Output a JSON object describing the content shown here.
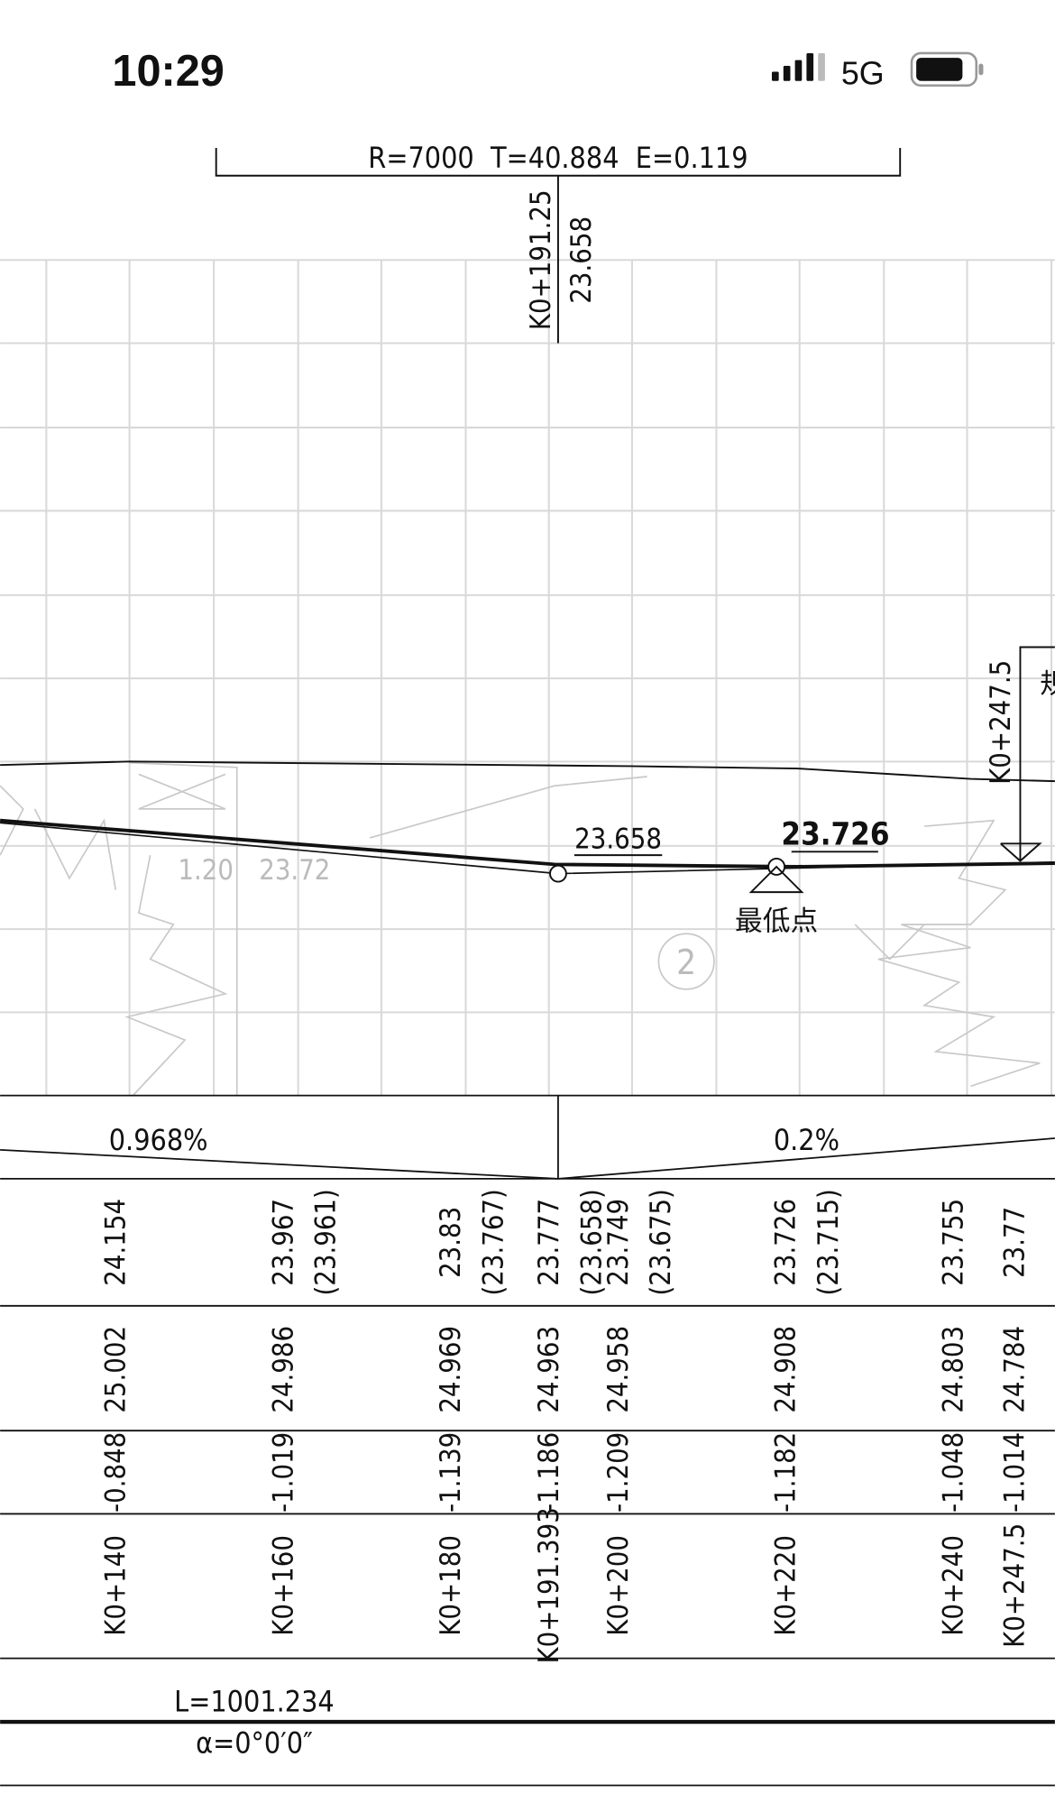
{
  "status_bar": {
    "time": "10:29",
    "network": "5G"
  },
  "curve": {
    "params": "R=7000  T=40.884  E=0.119",
    "station": "K0+191.25",
    "elevation": "23.658"
  },
  "profile": {
    "station_right": "K0+247.5",
    "label_right": "规",
    "point_a": "23.658",
    "point_b": "23.726",
    "lowest_point": "最低点",
    "annot_1": "1.20",
    "annot_2": "23.72",
    "circle_label": "2"
  },
  "grade": {
    "left": "0.968%",
    "right": "0.2%"
  },
  "table": {
    "columns": [
      {
        "design": "24.154",
        "design_alt": null,
        "ground": "25.002",
        "difference": "-0.848",
        "station": "K0+140"
      },
      {
        "design": "23.967",
        "design_alt": "(23.961)",
        "ground": "24.986",
        "difference": "-1.019",
        "station": "K0+160"
      },
      {
        "design": "23.83",
        "design_alt": "(23.767)",
        "ground": "24.969",
        "difference": "-1.139",
        "station": "K0+180"
      },
      {
        "design": "23.777",
        "design_alt": "(23.658)",
        "ground": "24.963",
        "difference": "-1.186",
        "station": "K0+191.393"
      },
      {
        "design": "23.749",
        "design_alt": "(23.675)",
        "ground": "24.958",
        "difference": "-1.209",
        "station": "K0+200"
      },
      {
        "design": "23.726",
        "design_alt": "(23.715)",
        "ground": "24.908",
        "difference": "-1.182",
        "station": "K0+220"
      },
      {
        "design": "23.755",
        "design_alt": null,
        "ground": "24.803",
        "difference": "-1.048",
        "station": "K0+240"
      },
      {
        "design": "23.77",
        "design_alt": null,
        "ground": "24.784",
        "difference": "-1.014",
        "station": "K0+247.5"
      }
    ]
  },
  "alignment": {
    "length": "L=1001.234",
    "angle": "α=0°0′0″"
  }
}
